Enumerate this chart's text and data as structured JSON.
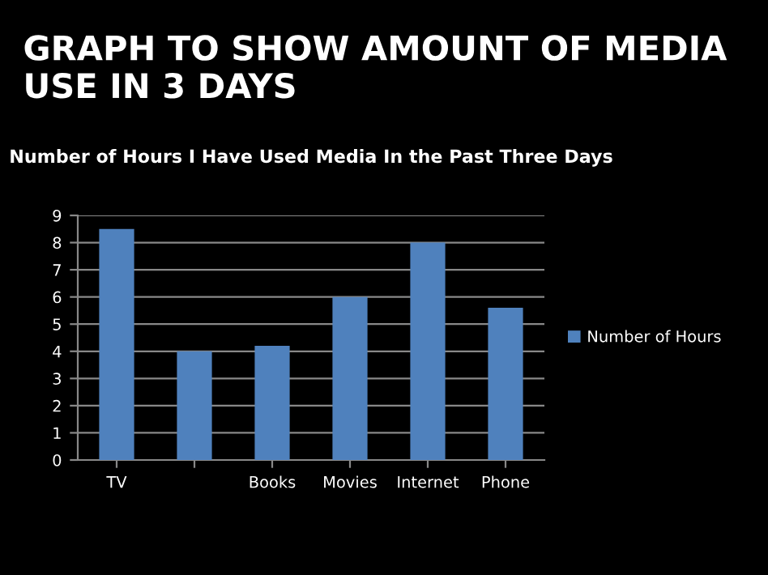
{
  "chart_data": {
    "type": "bar",
    "title": "GRAPH TO SHOW AMOUNT OF MEDIA USE IN 3 DAYS",
    "subtitle": "Number of Hours I Have Used Media In the Past Three Days",
    "categories": [
      "TV",
      null,
      "Books",
      "Movies",
      "Internet",
      "Phone"
    ],
    "series": [
      {
        "name": "Number of Hours",
        "color": "#4f81bd",
        "values": [
          8.5,
          4,
          4.2,
          6,
          8,
          5.6
        ]
      }
    ],
    "ylim": [
      0,
      9
    ],
    "yticks": [
      0,
      1,
      2,
      3,
      4,
      5,
      6,
      7,
      8,
      9
    ],
    "grid": "y",
    "legend": "right"
  }
}
